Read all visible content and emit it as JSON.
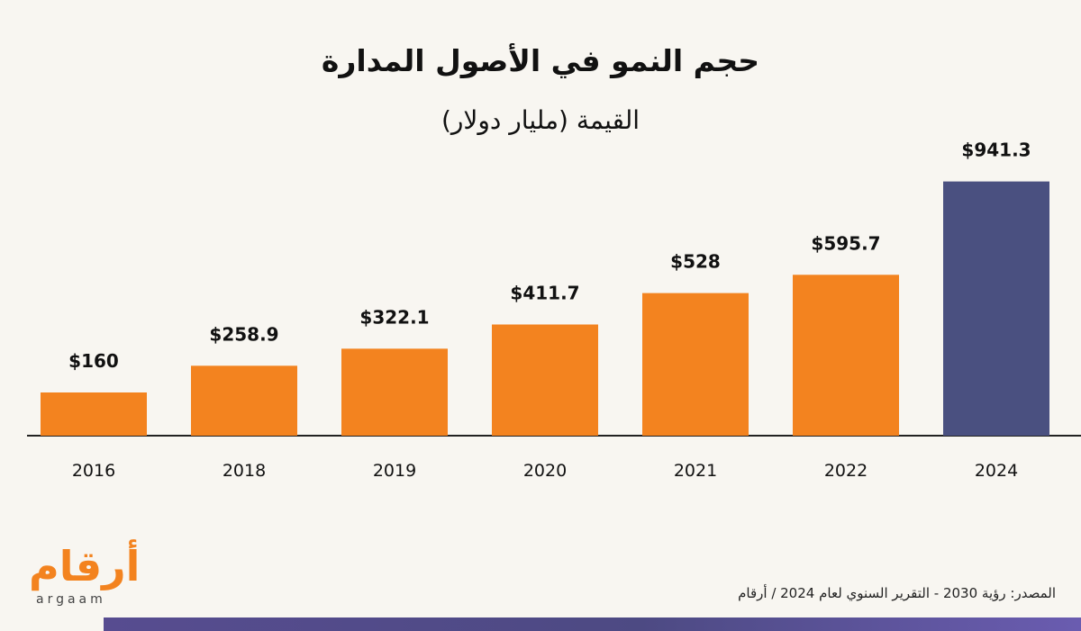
{
  "header": {
    "title": "حجم النمو في الأصول المدارة",
    "subtitle": "القيمة (مليار دولار)"
  },
  "chart_data": {
    "type": "bar",
    "title": "حجم النمو في الأصول المدارة",
    "ylabel": "القيمة (مليار دولار)",
    "xlabel": "",
    "categories": [
      "2016",
      "2018",
      "2019",
      "2020",
      "2021",
      "2022",
      "2024"
    ],
    "values": [
      160,
      258.9,
      322.1,
      411.7,
      528,
      595.7,
      941.3
    ],
    "value_labels": [
      "$160",
      "$258.9",
      "$322.1",
      "$411.7",
      "$528",
      "$595.7",
      "$941.3"
    ],
    "ylim": [
      0,
      1000
    ],
    "grid": false,
    "colors": {
      "default_bar": "#F3831F",
      "highlight_bar": "#4A5080",
      "highlight_category": "2024",
      "axis": "#222222",
      "text": "#111111"
    }
  },
  "logo": {
    "arabic": "أرقام",
    "latin": "argaam"
  },
  "footer": {
    "source": "المصدر: رؤية 2030 - التقرير السنوي لعام 2024 / أرقام"
  }
}
